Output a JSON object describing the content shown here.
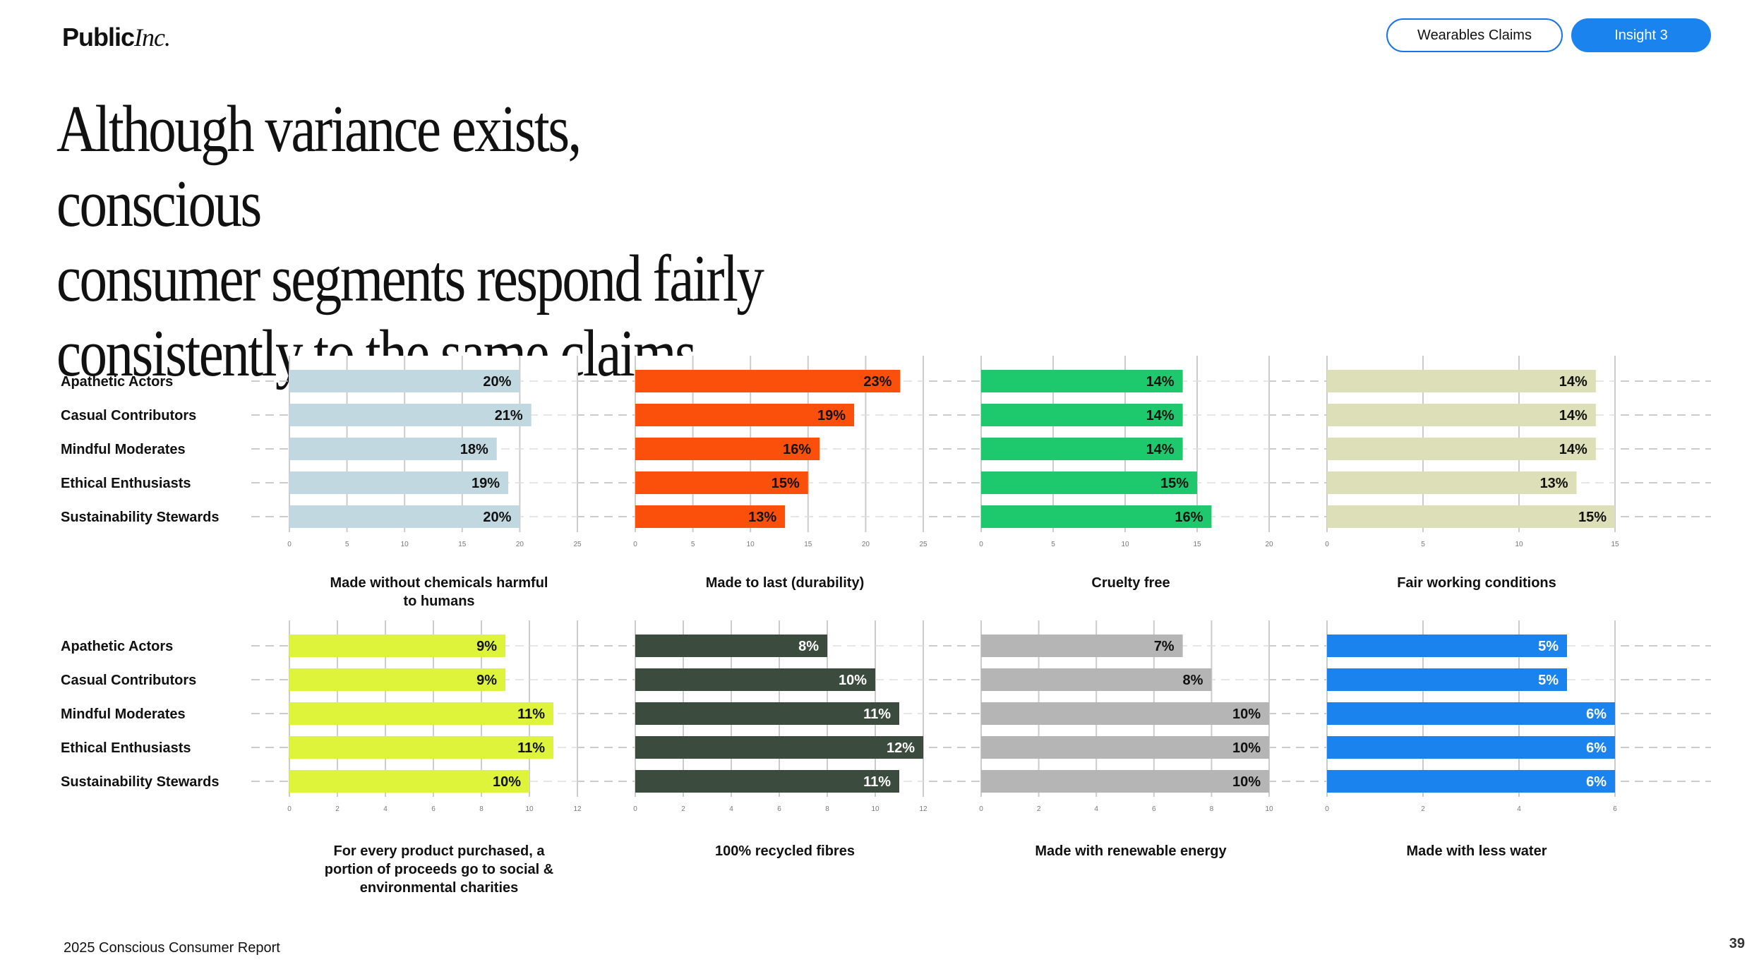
{
  "header": {
    "logo_main": "Public",
    "logo_suffix": "Inc.",
    "nav_button_1": "Wearables Claims",
    "nav_button_2": "Insight 3"
  },
  "headline": {
    "line1": "Although variance exists, conscious",
    "line2": "consumer segments respond fairly",
    "line3": "consistently to the same claims."
  },
  "footer": {
    "report_name": "2025 Conscious Consumer Report",
    "page_number": "39"
  },
  "colors": {
    "accent_blue": "#1b83ee",
    "grid": "#bbbbbb"
  },
  "chart_data": [
    {
      "type": "bar",
      "orientation": "horizontal",
      "title_lines": [
        "Made without chemicals harmful",
        "to humans"
      ],
      "categories": [
        "Apathetic Actors",
        "Casual Contributors",
        "Mindful Moderates",
        "Ethical Enthusiasts",
        "Sustainability Stewards"
      ],
      "values": [
        20,
        21,
        18,
        19,
        20
      ],
      "labels": [
        "20%",
        "21%",
        "18%",
        "19%",
        "20%"
      ],
      "xlim": [
        0,
        25
      ],
      "ticks": [
        0,
        5,
        10,
        15,
        20,
        25
      ],
      "color": "#c2d8e1",
      "label_color": "#111111"
    },
    {
      "type": "bar",
      "orientation": "horizontal",
      "title_lines": [
        "Made to last (durability)"
      ],
      "categories": [
        "Apathetic Actors",
        "Casual Contributors",
        "Mindful Moderates",
        "Ethical Enthusiasts",
        "Sustainability Stewards"
      ],
      "values": [
        23,
        19,
        16,
        15,
        13
      ],
      "labels": [
        "23%",
        "19%",
        "16%",
        "15%",
        "13%"
      ],
      "xlim": [
        0,
        25
      ],
      "ticks": [
        0,
        5,
        10,
        15,
        20,
        25
      ],
      "color": "#fb4f0c",
      "label_color": "#111111"
    },
    {
      "type": "bar",
      "orientation": "horizontal",
      "title_lines": [
        "Cruelty free"
      ],
      "categories": [
        "Apathetic Actors",
        "Casual Contributors",
        "Mindful Moderates",
        "Ethical Enthusiasts",
        "Sustainability Stewards"
      ],
      "values": [
        14,
        14,
        14,
        15,
        16
      ],
      "labels": [
        "14%",
        "14%",
        "14%",
        "15%",
        "16%"
      ],
      "xlim": [
        0,
        20
      ],
      "ticks": [
        0,
        5,
        10,
        15,
        20
      ],
      "color": "#1ec96e",
      "label_color": "#111111"
    },
    {
      "type": "bar",
      "orientation": "horizontal",
      "title_lines": [
        "Fair working conditions"
      ],
      "categories": [
        "Apathetic Actors",
        "Casual Contributors",
        "Mindful Moderates",
        "Ethical Enthusiasts",
        "Sustainability Stewards"
      ],
      "values": [
        14,
        14,
        14,
        13,
        15
      ],
      "labels": [
        "14%",
        "14%",
        "14%",
        "13%",
        "15%"
      ],
      "xlim": [
        0,
        15
      ],
      "ticks": [
        0,
        5,
        10,
        15
      ],
      "color": "#dcdfb7",
      "label_color": "#111111"
    },
    {
      "type": "bar",
      "orientation": "horizontal",
      "title_lines": [
        "For every product purchased, a",
        "portion of proceeds go to social &",
        "environmental charities"
      ],
      "categories": [
        "Apathetic Actors",
        "Casual Contributors",
        "Mindful Moderates",
        "Ethical Enthusiasts",
        "Sustainability Stewards"
      ],
      "values": [
        9,
        9,
        11,
        11,
        10
      ],
      "labels": [
        "9%",
        "9%",
        "11%",
        "11%",
        "10%"
      ],
      "xlim": [
        0,
        12
      ],
      "ticks": [
        0,
        2,
        4,
        6,
        8,
        10,
        12
      ],
      "color": "#def43a",
      "label_color": "#111111"
    },
    {
      "type": "bar",
      "orientation": "horizontal",
      "title_lines": [
        "100% recycled fibres"
      ],
      "categories": [
        "Apathetic Actors",
        "Casual Contributors",
        "Mindful Moderates",
        "Ethical Enthusiasts",
        "Sustainability Stewards"
      ],
      "values": [
        8,
        10,
        11,
        12,
        11
      ],
      "labels": [
        "8%",
        "10%",
        "11%",
        "12%",
        "11%"
      ],
      "xlim": [
        0,
        12
      ],
      "ticks": [
        0,
        2,
        4,
        6,
        8,
        10,
        12
      ],
      "color": "#3b4b3d",
      "label_color": "#ffffff"
    },
    {
      "type": "bar",
      "orientation": "horizontal",
      "title_lines": [
        "Made with renewable energy"
      ],
      "categories": [
        "Apathetic Actors",
        "Casual Contributors",
        "Mindful Moderates",
        "Ethical Enthusiasts",
        "Sustainability Stewards"
      ],
      "values": [
        7,
        8,
        10,
        10,
        10
      ],
      "labels": [
        "7%",
        "8%",
        "10%",
        "10%",
        "10%"
      ],
      "xlim": [
        0,
        10
      ],
      "ticks": [
        0,
        2,
        4,
        6,
        8,
        10
      ],
      "color": "#b5b5b5",
      "label_color": "#111111"
    },
    {
      "type": "bar",
      "orientation": "horizontal",
      "title_lines": [
        "Made with less water"
      ],
      "categories": [
        "Apathetic Actors",
        "Casual Contributors",
        "Mindful Moderates",
        "Ethical Enthusiasts",
        "Sustainability Stewards"
      ],
      "values": [
        5,
        5,
        6,
        6,
        6
      ],
      "labels": [
        "5%",
        "5%",
        "6%",
        "6%",
        "6%"
      ],
      "xlim": [
        0,
        6
      ],
      "ticks": [
        0,
        2,
        4,
        6
      ],
      "color": "#1b83ee",
      "label_color": "#ffffff"
    }
  ]
}
